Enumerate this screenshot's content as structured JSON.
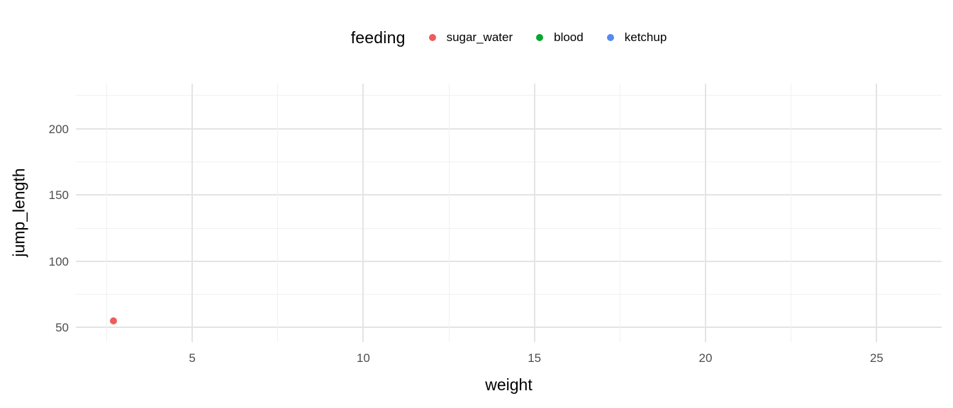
{
  "figure": {
    "background": "#ffffff",
    "text_color": "#000000",
    "tick_color": "#4d4d4d",
    "grid_major_color": "#e4e4e4",
    "grid_minor_color": "#f1f1f1"
  },
  "chart_data": {
    "type": "scatter",
    "title": "",
    "xlabel": "weight",
    "ylabel": "jump_length",
    "xlim": [
      1.6,
      26.9
    ],
    "ylim": [
      39,
      234
    ],
    "x_ticks": [
      5,
      10,
      15,
      20,
      25
    ],
    "y_ticks": [
      50,
      100,
      150,
      200
    ],
    "x_minor_ticks": [
      2.5,
      7.5,
      12.5,
      17.5,
      22.5
    ],
    "y_minor_ticks": [
      75,
      125,
      175,
      225
    ],
    "grid": true,
    "legend": {
      "title": "feeding",
      "position": "top",
      "entries": [
        {
          "label": "sugar_water",
          "color": "#ee5c5c"
        },
        {
          "label": "blood",
          "color": "#0aa62d"
        },
        {
          "label": "ketchup",
          "color": "#548bf0"
        }
      ]
    },
    "series": [
      {
        "name": "sugar_water",
        "color": "#ee5c5c",
        "points": [
          {
            "x": 2.7,
            "y": 55
          }
        ]
      },
      {
        "name": "blood",
        "color": "#0aa62d",
        "points": []
      },
      {
        "name": "ketchup",
        "color": "#548bf0",
        "points": []
      }
    ]
  }
}
